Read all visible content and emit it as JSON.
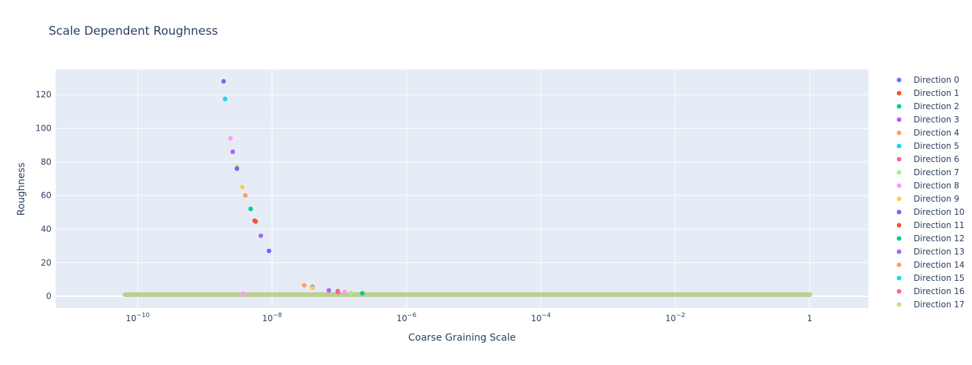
{
  "chart_data": {
    "type": "scatter",
    "title": "Scale Dependent Roughness",
    "xlabel": "Coarse Graining Scale",
    "ylabel": "Roughness",
    "x_scale": "log",
    "xlim": [
      6e-12,
      7.5
    ],
    "ylim": [
      -7,
      135
    ],
    "grid": true,
    "legend_position": "right",
    "x_ticks": [
      {
        "value": 1e-10,
        "base": "10",
        "exp": "−10"
      },
      {
        "value": 1e-08,
        "base": "10",
        "exp": "−8"
      },
      {
        "value": 1e-06,
        "base": "10",
        "exp": "−6"
      },
      {
        "value": 0.0001,
        "base": "10",
        "exp": "−4"
      },
      {
        "value": 0.01,
        "base": "10",
        "exp": "−2"
      },
      {
        "value": 1,
        "base": "1",
        "exp": ""
      }
    ],
    "y_ticks": [
      "0",
      "20",
      "40",
      "60",
      "80",
      "100",
      "120"
    ],
    "baseline": {
      "x_min": 6.5e-11,
      "x_max": 1.0,
      "count": 260,
      "y": 1
    },
    "colors": [
      "#636efa",
      "#EF553B",
      "#00cc96",
      "#ab63fa",
      "#FFA15A",
      "#19d3f3",
      "#FF6692",
      "#B6E880",
      "#FF97FF",
      "#FECB52",
      "#636efa",
      "#EF553B",
      "#00cc96",
      "#ab63fa",
      "#FFA15A",
      "#19d3f3",
      "#FF6692",
      "#B6E880"
    ],
    "series": [
      {
        "name": "Direction 0",
        "points": [
          [
            1.9e-09,
            128
          ],
          [
            9e-09,
            27
          ],
          [
            4e-08,
            5.5
          ]
        ]
      },
      {
        "name": "Direction 1",
        "points": [
          [
            5.5e-09,
            45
          ],
          [
            9.5e-08,
            3
          ]
        ]
      },
      {
        "name": "Direction 2",
        "points": [
          [
            4.8e-09,
            52
          ],
          [
            2.2e-07,
            1.8
          ]
        ]
      },
      {
        "name": "Direction 3",
        "points": [
          [
            2.6e-09,
            86
          ],
          [
            7e-08,
            3.5
          ]
        ]
      },
      {
        "name": "Direction 4",
        "points": [
          [
            4e-09,
            60
          ],
          [
            3e-08,
            6.5
          ]
        ]
      },
      {
        "name": "Direction 5",
        "points": [
          [
            2e-09,
            117.5
          ]
        ]
      },
      {
        "name": "Direction 6",
        "points": [
          [
            9.5e-08,
            2.5
          ]
        ]
      },
      {
        "name": "Direction 7",
        "points": [
          [
            1.5e-07,
            2
          ]
        ]
      },
      {
        "name": "Direction 8",
        "points": [
          [
            2.4e-09,
            94
          ],
          [
            3.7e-09,
            1.5
          ],
          [
            1.2e-07,
            2.5
          ]
        ]
      },
      {
        "name": "Direction 9",
        "points": [
          [
            3e-09,
            77
          ],
          [
            3.6e-09,
            65
          ],
          [
            4e-08,
            5
          ]
        ]
      },
      {
        "name": "Direction 10",
        "points": [
          [
            3e-09,
            76
          ]
        ]
      },
      {
        "name": "Direction 11",
        "points": [
          [
            5.7e-09,
            44.5
          ]
        ]
      },
      {
        "name": "Direction 12",
        "points": []
      },
      {
        "name": "Direction 13",
        "points": [
          [
            6.8e-09,
            36
          ]
        ]
      },
      {
        "name": "Direction 14",
        "points": []
      },
      {
        "name": "Direction 15",
        "points": []
      },
      {
        "name": "Direction 16",
        "points": []
      },
      {
        "name": "Direction 17",
        "points": []
      }
    ]
  }
}
